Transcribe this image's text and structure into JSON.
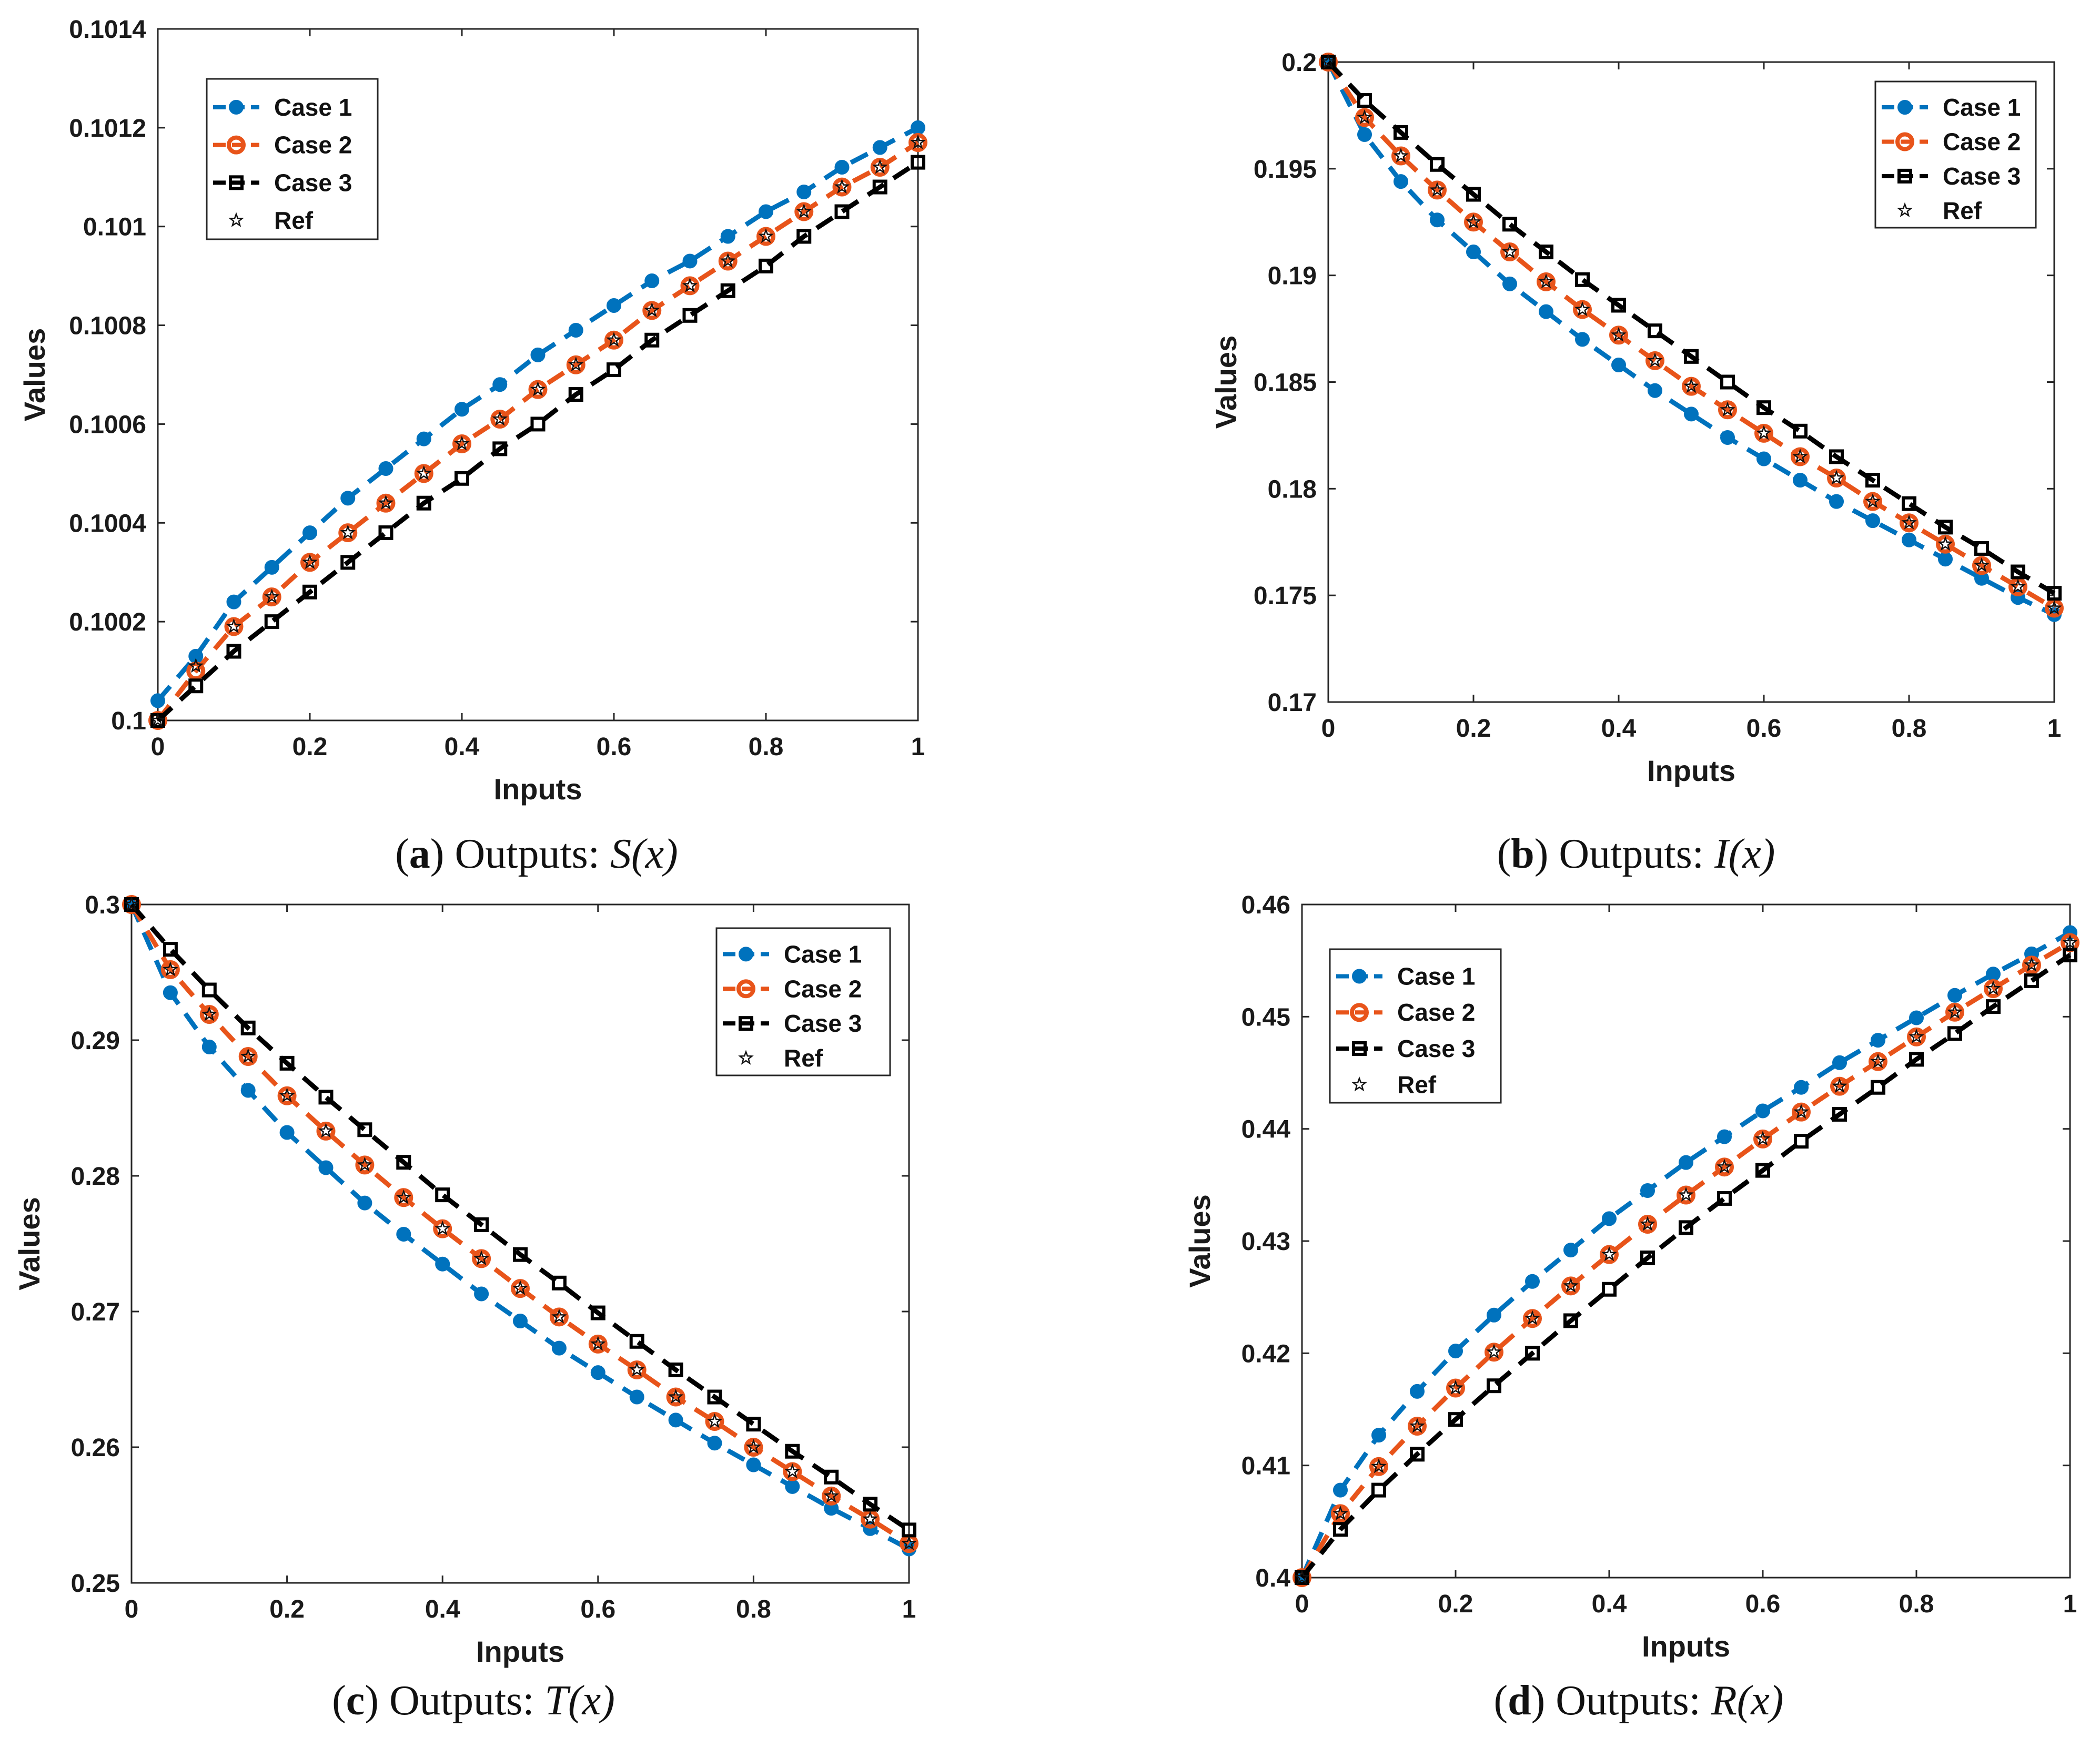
{
  "chart_data": [
    {
      "panel": "a",
      "type": "line",
      "caption": {
        "letter": "a",
        "text": "Outputs:",
        "variable": "S(x)"
      },
      "xlabel": "Inputs",
      "ylabel": "Values",
      "xlim": [
        0,
        1
      ],
      "ylim": [
        0.1,
        0.1014
      ],
      "xticks": [
        0,
        0.2,
        0.4,
        0.6,
        0.8,
        1
      ],
      "xtick_labels": [
        "0",
        "0.2",
        "0.4",
        "0.6",
        "0.8",
        "1"
      ],
      "yticks": [
        0.1,
        0.1002,
        0.1004,
        0.1006,
        0.1008,
        0.101,
        0.1012,
        0.1014
      ],
      "ytick_labels": [
        "0.1",
        "0.1002",
        "0.1004",
        "0.1006",
        "0.1008",
        "0.101",
        "0.1012",
        "0.1014"
      ],
      "legend_position": "top-left",
      "x": [
        0,
        0.05,
        0.1,
        0.15,
        0.2,
        0.25,
        0.3,
        0.35,
        0.4,
        0.45,
        0.5,
        0.55,
        0.6,
        0.65,
        0.7,
        0.75,
        0.8,
        0.85,
        0.9,
        0.95,
        1
      ],
      "series": [
        {
          "name": "Case 1",
          "values": [
            0.10004,
            0.10013,
            0.10024,
            0.10031,
            0.10038,
            0.10045,
            0.10051,
            0.10057,
            0.10063,
            0.10068,
            0.10074,
            0.10079,
            0.10084,
            0.10089,
            0.10093,
            0.10098,
            0.10103,
            0.10107,
            0.10112,
            0.10116,
            0.1012
          ]
        },
        {
          "name": "Case 2",
          "values": [
            0.1,
            0.1001,
            0.10019,
            0.10025,
            0.10032,
            0.10038,
            0.10044,
            0.1005,
            0.10056,
            0.10061,
            0.10067,
            0.10072,
            0.10077,
            0.10083,
            0.10088,
            0.10093,
            0.10098,
            0.10103,
            0.10108,
            0.10112,
            0.10117
          ]
        },
        {
          "name": "Case 3",
          "values": [
            0.1,
            0.10007,
            0.10014,
            0.1002,
            0.10026,
            0.10032,
            0.10038,
            0.10044,
            0.10049,
            0.10055,
            0.1006,
            0.10066,
            0.10071,
            0.10077,
            0.10082,
            0.10087,
            0.10092,
            0.10098,
            0.10103,
            0.10108,
            0.10113
          ]
        },
        {
          "name": "Ref",
          "values": [
            0.1,
            0.10011,
            0.10019,
            0.10025,
            0.10032,
            0.10038,
            0.10044,
            0.1005,
            0.10056,
            0.10061,
            0.10067,
            0.10072,
            0.10077,
            0.10083,
            0.10088,
            0.10093,
            0.10098,
            0.10103,
            0.10108,
            0.10112,
            0.10117
          ]
        }
      ]
    },
    {
      "panel": "b",
      "type": "line",
      "caption": {
        "letter": "b",
        "text": "Outputs:",
        "variable": "I(x)"
      },
      "xlabel": "Inputs",
      "ylabel": "Values",
      "xlim": [
        0,
        1
      ],
      "ylim": [
        0.17,
        0.2
      ],
      "xticks": [
        0,
        0.2,
        0.4,
        0.6,
        0.8,
        1
      ],
      "xtick_labels": [
        "0",
        "0.2",
        "0.4",
        "0.6",
        "0.8",
        "1"
      ],
      "yticks": [
        0.17,
        0.175,
        0.18,
        0.185,
        0.19,
        0.195,
        0.2
      ],
      "ytick_labels": [
        "0.17",
        "0.175",
        "0.18",
        "0.185",
        "0.19",
        "0.195",
        "0.2"
      ],
      "legend_position": "top-right",
      "x": [
        0,
        0.05,
        0.1,
        0.15,
        0.2,
        0.25,
        0.3,
        0.35,
        0.4,
        0.45,
        0.5,
        0.55,
        0.6,
        0.65,
        0.7,
        0.75,
        0.8,
        0.85,
        0.9,
        0.95,
        1
      ],
      "series": [
        {
          "name": "Case 1",
          "values": [
            0.2,
            0.1966,
            0.1944,
            0.1926,
            0.1911,
            0.1896,
            0.1883,
            0.187,
            0.1858,
            0.1846,
            0.1835,
            0.1824,
            0.1814,
            0.1804,
            0.1794,
            0.1785,
            0.1776,
            0.1767,
            0.1758,
            0.1749,
            0.1741
          ]
        },
        {
          "name": "Case 2",
          "values": [
            0.2,
            0.1974,
            0.1956,
            0.194,
            0.1925,
            0.1911,
            0.1897,
            0.1884,
            0.1872,
            0.186,
            0.1848,
            0.1837,
            0.1826,
            0.1815,
            0.1805,
            0.1794,
            0.1784,
            0.1774,
            0.1764,
            0.1754,
            0.1744
          ]
        },
        {
          "name": "Case 3",
          "values": [
            0.2,
            0.1982,
            0.1967,
            0.1952,
            0.1938,
            0.1924,
            0.1911,
            0.1898,
            0.1886,
            0.1874,
            0.1862,
            0.185,
            0.1838,
            0.1827,
            0.1815,
            0.1804,
            0.1793,
            0.1782,
            0.1772,
            0.1761,
            0.1751
          ]
        },
        {
          "name": "Ref",
          "values": [
            0.2,
            0.1974,
            0.1956,
            0.194,
            0.1925,
            0.1911,
            0.1897,
            0.1884,
            0.1872,
            0.186,
            0.1848,
            0.1837,
            0.1826,
            0.1815,
            0.1805,
            0.1794,
            0.1784,
            0.1774,
            0.1764,
            0.1754,
            0.1744
          ]
        }
      ]
    },
    {
      "panel": "c",
      "type": "line",
      "caption": {
        "letter": "c",
        "text": "Outputs:",
        "variable": "T(x)"
      },
      "xlabel": "Inputs",
      "ylabel": "Values",
      "xlim": [
        0,
        1
      ],
      "ylim": [
        0.25,
        0.3
      ],
      "xticks": [
        0,
        0.2,
        0.4,
        0.6,
        0.8,
        1
      ],
      "xtick_labels": [
        "0",
        "0.2",
        "0.4",
        "0.6",
        "0.8",
        "1"
      ],
      "yticks": [
        0.25,
        0.26,
        0.27,
        0.28,
        0.29,
        0.3
      ],
      "ytick_labels": [
        "0.25",
        "0.26",
        "0.27",
        "0.28",
        "0.29",
        "0.3"
      ],
      "legend_position": "top-right",
      "x": [
        0,
        0.05,
        0.1,
        0.15,
        0.2,
        0.25,
        0.3,
        0.35,
        0.4,
        0.45,
        0.5,
        0.55,
        0.6,
        0.65,
        0.7,
        0.75,
        0.8,
        0.85,
        0.9,
        0.95,
        1
      ],
      "series": [
        {
          "name": "Case 1",
          "values": [
            0.3,
            0.2935,
            0.2895,
            0.2863,
            0.2832,
            0.2806,
            0.278,
            0.2757,
            0.2735,
            0.2713,
            0.2693,
            0.2673,
            0.2655,
            0.2637,
            0.262,
            0.2603,
            0.2587,
            0.2571,
            0.2555,
            0.254,
            0.2525
          ]
        },
        {
          "name": "Case 2",
          "values": [
            0.3,
            0.2952,
            0.2919,
            0.2888,
            0.2859,
            0.2833,
            0.2808,
            0.2784,
            0.2761,
            0.2739,
            0.2717,
            0.2696,
            0.2676,
            0.2657,
            0.2637,
            0.2619,
            0.26,
            0.2582,
            0.2564,
            0.2547,
            0.2529
          ]
        },
        {
          "name": "Case 3",
          "values": [
            0.3,
            0.2967,
            0.2937,
            0.2909,
            0.2883,
            0.2858,
            0.2834,
            0.281,
            0.2786,
            0.2764,
            0.2742,
            0.2721,
            0.2699,
            0.2678,
            0.2657,
            0.2637,
            0.2617,
            0.2597,
            0.2578,
            0.2558,
            0.2539
          ]
        },
        {
          "name": "Ref",
          "values": [
            0.3,
            0.2952,
            0.2919,
            0.2888,
            0.2859,
            0.2833,
            0.2808,
            0.2784,
            0.2761,
            0.2739,
            0.2717,
            0.2696,
            0.2676,
            0.2657,
            0.2637,
            0.2619,
            0.26,
            0.2582,
            0.2564,
            0.2547,
            0.2529
          ]
        }
      ]
    },
    {
      "panel": "d",
      "type": "line",
      "caption": {
        "letter": "d",
        "text": "Outputs:",
        "variable": "R(x)"
      },
      "xlabel": "Inputs",
      "ylabel": "Values",
      "xlim": [
        0,
        1
      ],
      "ylim": [
        0.4,
        0.46
      ],
      "xticks": [
        0,
        0.2,
        0.4,
        0.6,
        0.8,
        1
      ],
      "xtick_labels": [
        "0",
        "0.2",
        "0.4",
        "0.6",
        "0.8",
        "1"
      ],
      "yticks": [
        0.4,
        0.41,
        0.42,
        0.43,
        0.44,
        0.45,
        0.46
      ],
      "ytick_labels": [
        "0.4",
        "0.41",
        "0.42",
        "0.43",
        "0.44",
        "0.45",
        "0.46"
      ],
      "legend_position": "top-left",
      "x": [
        0,
        0.05,
        0.1,
        0.15,
        0.2,
        0.25,
        0.3,
        0.35,
        0.4,
        0.45,
        0.5,
        0.55,
        0.6,
        0.65,
        0.7,
        0.75,
        0.8,
        0.85,
        0.9,
        0.95,
        1
      ],
      "series": [
        {
          "name": "Case 1",
          "values": [
            0.4,
            0.4078,
            0.4127,
            0.4166,
            0.4202,
            0.4234,
            0.4264,
            0.4292,
            0.432,
            0.4345,
            0.437,
            0.4393,
            0.4416,
            0.4437,
            0.4459,
            0.4479,
            0.4499,
            0.4519,
            0.4538,
            0.4556,
            0.4575
          ]
        },
        {
          "name": "Case 2",
          "values": [
            0.4,
            0.4057,
            0.4099,
            0.4135,
            0.4169,
            0.4201,
            0.4231,
            0.426,
            0.4288,
            0.4315,
            0.4341,
            0.4366,
            0.4391,
            0.4415,
            0.4438,
            0.446,
            0.4482,
            0.4504,
            0.4525,
            0.4546,
            0.4566
          ]
        },
        {
          "name": "Case 3",
          "values": [
            0.4,
            0.4043,
            0.4078,
            0.411,
            0.4141,
            0.4171,
            0.42,
            0.4229,
            0.4257,
            0.4285,
            0.4312,
            0.4338,
            0.4363,
            0.4389,
            0.4413,
            0.4437,
            0.4462,
            0.4485,
            0.4509,
            0.4532,
            0.4555
          ]
        },
        {
          "name": "Ref",
          "values": [
            0.4,
            0.4057,
            0.4099,
            0.4135,
            0.4169,
            0.4201,
            0.4231,
            0.426,
            0.4288,
            0.4315,
            0.4341,
            0.4366,
            0.4391,
            0.4415,
            0.4438,
            0.446,
            0.4482,
            0.4504,
            0.4525,
            0.4546,
            0.4566
          ]
        }
      ]
    }
  ],
  "series_style": {
    "Case 1": {
      "color": "#0072BD",
      "marker": "filled-circle",
      "line": "dashed"
    },
    "Case 2": {
      "color": "#E8541A",
      "marker": "open-circle",
      "line": "dashed"
    },
    "Case 3": {
      "color": "#000000",
      "marker": "open-square",
      "line": "dashed"
    },
    "Ref": {
      "color": "#000000",
      "marker": "star",
      "line": "none"
    }
  }
}
